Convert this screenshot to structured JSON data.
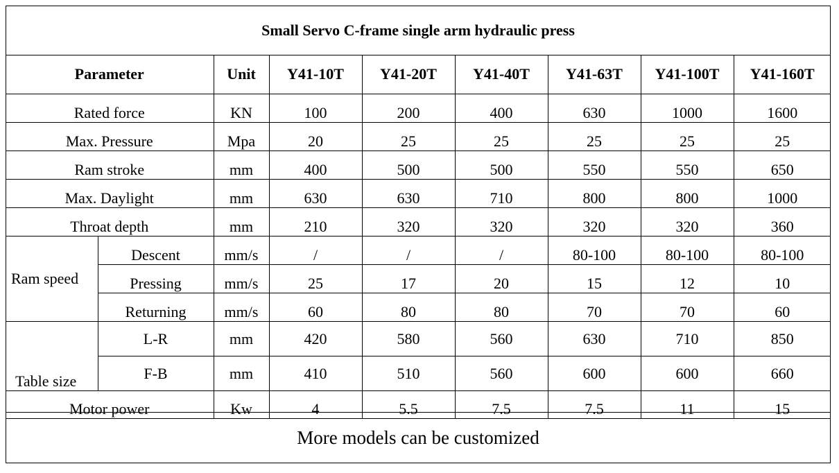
{
  "title": "Small Servo C-frame single arm hydraulic press",
  "headers": {
    "parameter": "Parameter",
    "unit": "Unit",
    "models": [
      "Y41-10T",
      "Y41-20T",
      "Y41-40T",
      "Y41-63T",
      "Y41-100T",
      "Y41-160T"
    ]
  },
  "rows": {
    "rated_force": {
      "label": "Rated force",
      "unit": "KN",
      "values": [
        "100",
        "200",
        "400",
        "630",
        "1000",
        "1600"
      ]
    },
    "max_pressure": {
      "label": "Max. Pressure",
      "unit": "Mpa",
      "values": [
        "20",
        "25",
        "25",
        "25",
        "25",
        "25"
      ]
    },
    "ram_stroke": {
      "label": "Ram stroke",
      "unit": "mm",
      "values": [
        "400",
        "500",
        "500",
        "550",
        "550",
        "650"
      ]
    },
    "max_daylight": {
      "label": "Max. Daylight",
      "unit": "mm",
      "values": [
        "630",
        "630",
        "710",
        "800",
        "800",
        "1000"
      ]
    },
    "throat_depth": {
      "label": "Throat depth",
      "unit": "mm",
      "values": [
        "210",
        "320",
        "320",
        "320",
        "320",
        "360"
      ]
    },
    "ram_speed": {
      "label": "Ram speed",
      "descent": {
        "label": "Descent",
        "unit": "mm/s",
        "values": [
          "/",
          "/",
          "/",
          "80-100",
          "80-100",
          "80-100"
        ]
      },
      "pressing": {
        "label": "Pressing",
        "unit": "mm/s",
        "values": [
          "25",
          "17",
          "20",
          "15",
          "12",
          "10"
        ]
      },
      "returning": {
        "label": "Returning",
        "unit": "mm/s",
        "values": [
          "60",
          "80",
          "80",
          "70",
          "70",
          "60"
        ]
      }
    },
    "table_size": {
      "label": "Table size",
      "lr": {
        "label": "L-R",
        "unit": "mm",
        "values": [
          "420",
          "580",
          "560",
          "630",
          "710",
          "850"
        ]
      },
      "fb": {
        "label": "F-B",
        "unit": "mm",
        "values": [
          "410",
          "510",
          "560",
          "600",
          "600",
          "660"
        ]
      }
    },
    "motor_power": {
      "label": "Motor power",
      "unit": "Kw",
      "values": [
        "4",
        "5.5",
        "7.5",
        "7.5",
        "11",
        "15"
      ]
    }
  },
  "footer": "More models can be customized"
}
